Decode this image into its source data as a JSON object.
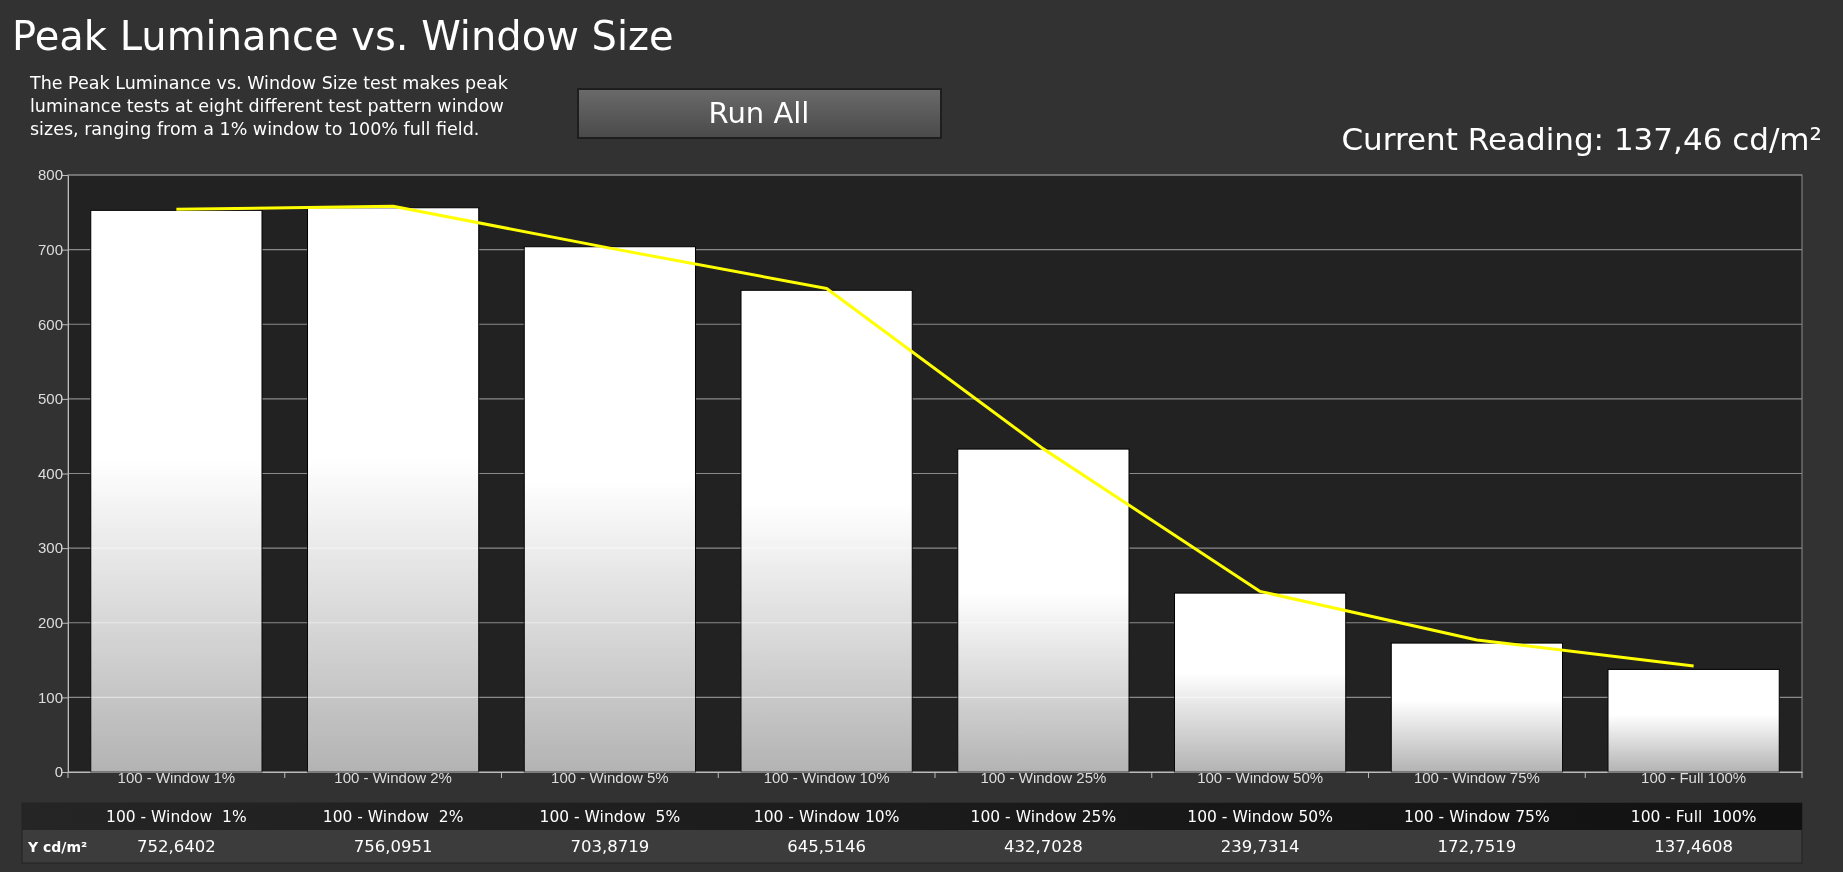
{
  "chart_data": {
    "type": "bar",
    "title": "Peak Luminance vs. Window Size",
    "subtitle": "The Peak Luminance vs. Window Size test makes peak luminance tests at eight different test pattern window sizes, ranging from a 1% window to 100% full field.",
    "annotations": [
      "Run All",
      "Current Reading: 137,46 cd/m²"
    ],
    "categories": [
      "100 - Window  1%",
      "100 - Window  2%",
      "100 - Window  5%",
      "100 - Window 10%",
      "100 - Window 25%",
      "100 - Window 50%",
      "100 - Window 75%",
      "100 - Full  100%"
    ],
    "series": [
      {
        "name": "Y cd/m²",
        "color": "#ffffff",
        "values": [
          752.6402,
          756.0951,
          703.8719,
          645.5146,
          432.7028,
          239.7314,
          172.7519,
          137.4608
        ],
        "value_labels": [
          "752,6402",
          "756,0951",
          "703,8719",
          "645,5146",
          "432,7028",
          "239,7314",
          "172,7519",
          "137,4608"
        ]
      },
      {
        "type": "line",
        "color": "#ffff00",
        "values": [
          754,
          758,
          702,
          648,
          433,
          242,
          177,
          142
        ]
      }
    ],
    "ylim": [
      0,
      800
    ],
    "yticks": [
      0,
      100,
      200,
      300,
      400,
      500,
      600,
      700,
      800
    ],
    "grid": "y",
    "legend": false,
    "marker": "none",
    "line_style": "solid"
  }
}
